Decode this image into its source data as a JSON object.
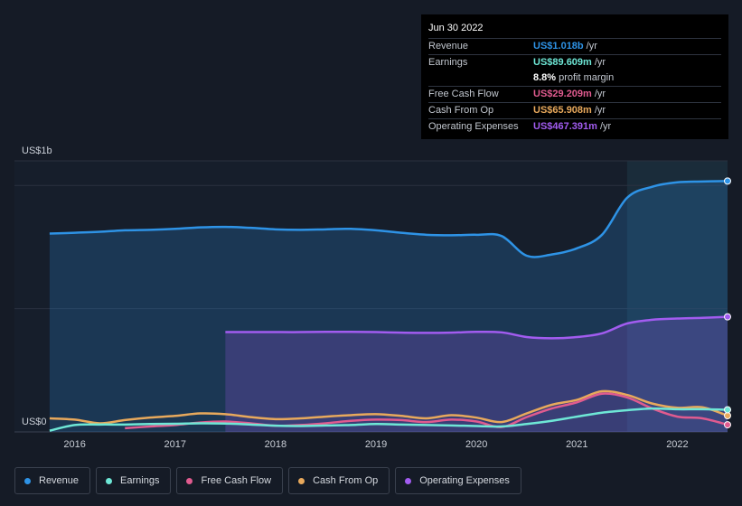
{
  "tooltip": {
    "date": "Jun 30 2022",
    "rows": [
      {
        "label": "Revenue",
        "value": "US$1.018b",
        "suffix": "/yr",
        "color": "#2e93e6"
      },
      {
        "label": "Earnings",
        "value": "US$89.609m",
        "suffix": "/yr",
        "color": "#6ee7d6"
      },
      {
        "label": "",
        "value": "8.8%",
        "suffix": "profit margin",
        "color": "#ffffff"
      },
      {
        "label": "Free Cash Flow",
        "value": "US$29.209m",
        "suffix": "/yr",
        "color": "#e05b8f"
      },
      {
        "label": "Cash From Op",
        "value": "US$65.908m",
        "suffix": "/yr",
        "color": "#e8a95c"
      },
      {
        "label": "Operating Expenses",
        "value": "US$467.391m",
        "suffix": "/yr",
        "color": "#a25cf0"
      }
    ]
  },
  "legend": [
    {
      "label": "Revenue",
      "color": "#2e93e6"
    },
    {
      "label": "Earnings",
      "color": "#6ee7d6"
    },
    {
      "label": "Free Cash Flow",
      "color": "#e05b8f"
    },
    {
      "label": "Cash From Op",
      "color": "#e8a95c"
    },
    {
      "label": "Operating Expenses",
      "color": "#a25cf0"
    }
  ],
  "chart_data": {
    "type": "area",
    "y_top_label": "US$1b",
    "y_zero_label": "US$0",
    "ylim": [
      0,
      1100
    ],
    "xlim": [
      2015.4,
      2022.5
    ],
    "x_ticks": [
      2016,
      2017,
      2018,
      2019,
      2020,
      2021,
      2022
    ],
    "x_tick_labels": [
      "2016",
      "2017",
      "2018",
      "2019",
      "2020",
      "2021",
      "2022"
    ],
    "highlight_from": 2021.5,
    "series": [
      {
        "name": "Revenue",
        "color": "#2e93e6",
        "fill": true,
        "x": [
          2015.75,
          2016.0,
          2016.25,
          2016.5,
          2016.75,
          2017.0,
          2017.25,
          2017.5,
          2017.75,
          2018.0,
          2018.25,
          2018.5,
          2018.75,
          2019.0,
          2019.25,
          2019.5,
          2019.75,
          2020.0,
          2020.25,
          2020.5,
          2020.75,
          2021.0,
          2021.25,
          2021.5,
          2021.75,
          2022.0,
          2022.25,
          2022.5
        ],
        "y": [
          805,
          808,
          812,
          818,
          820,
          824,
          830,
          832,
          828,
          822,
          820,
          822,
          824,
          818,
          808,
          800,
          798,
          800,
          795,
          715,
          720,
          745,
          800,
          950,
          995,
          1013,
          1016,
          1018
        ]
      },
      {
        "name": "Operating Expenses",
        "color": "#a25cf0",
        "fill": true,
        "x": [
          2017.5,
          2017.75,
          2018.0,
          2018.25,
          2018.5,
          2018.75,
          2019.0,
          2019.25,
          2019.5,
          2019.75,
          2020.0,
          2020.25,
          2020.5,
          2020.75,
          2021.0,
          2021.25,
          2021.5,
          2021.75,
          2022.0,
          2022.25,
          2022.5
        ],
        "y": [
          405,
          405,
          405,
          405,
          406,
          406,
          405,
          403,
          402,
          403,
          406,
          404,
          385,
          380,
          385,
          400,
          440,
          455,
          460,
          463,
          467
        ]
      },
      {
        "name": "Cash From Op",
        "color": "#e8a95c",
        "fill": false,
        "x": [
          2015.75,
          2016.0,
          2016.25,
          2016.5,
          2016.75,
          2017.0,
          2017.25,
          2017.5,
          2017.75,
          2018.0,
          2018.25,
          2018.5,
          2018.75,
          2019.0,
          2019.25,
          2019.5,
          2019.75,
          2020.0,
          2020.25,
          2020.5,
          2020.75,
          2021.0,
          2021.25,
          2021.5,
          2021.75,
          2022.0,
          2022.25,
          2022.5
        ],
        "y": [
          55,
          50,
          35,
          48,
          58,
          65,
          75,
          72,
          60,
          52,
          55,
          62,
          68,
          72,
          65,
          55,
          68,
          58,
          40,
          75,
          110,
          130,
          165,
          150,
          115,
          98,
          100,
          66
        ]
      },
      {
        "name": "Free Cash Flow",
        "color": "#e05b8f",
        "fill": false,
        "x": [
          2016.5,
          2016.75,
          2017.0,
          2017.25,
          2017.5,
          2017.75,
          2018.0,
          2018.25,
          2018.5,
          2018.75,
          2019.0,
          2019.25,
          2019.5,
          2019.75,
          2020.0,
          2020.25,
          2020.5,
          2020.75,
          2021.0,
          2021.25,
          2021.5,
          2021.75,
          2022.0,
          2022.25,
          2022.5
        ],
        "y": [
          15,
          22,
          28,
          38,
          42,
          35,
          25,
          28,
          35,
          45,
          50,
          48,
          40,
          50,
          42,
          20,
          60,
          95,
          120,
          155,
          140,
          95,
          62,
          55,
          29
        ]
      },
      {
        "name": "Earnings",
        "color": "#6ee7d6",
        "fill": false,
        "x": [
          2015.75,
          2016.0,
          2016.25,
          2016.5,
          2016.75,
          2017.0,
          2017.25,
          2017.5,
          2017.75,
          2018.0,
          2018.25,
          2018.5,
          2018.75,
          2019.0,
          2019.25,
          2019.5,
          2019.75,
          2020.0,
          2020.25,
          2020.5,
          2020.75,
          2021.0,
          2021.25,
          2021.5,
          2021.75,
          2022.0,
          2022.25,
          2022.5
        ],
        "y": [
          5,
          28,
          30,
          30,
          32,
          33,
          35,
          34,
          30,
          25,
          24,
          26,
          28,
          32,
          30,
          28,
          26,
          24,
          22,
          32,
          45,
          62,
          78,
          88,
          95,
          92,
          92,
          90
        ]
      }
    ]
  }
}
